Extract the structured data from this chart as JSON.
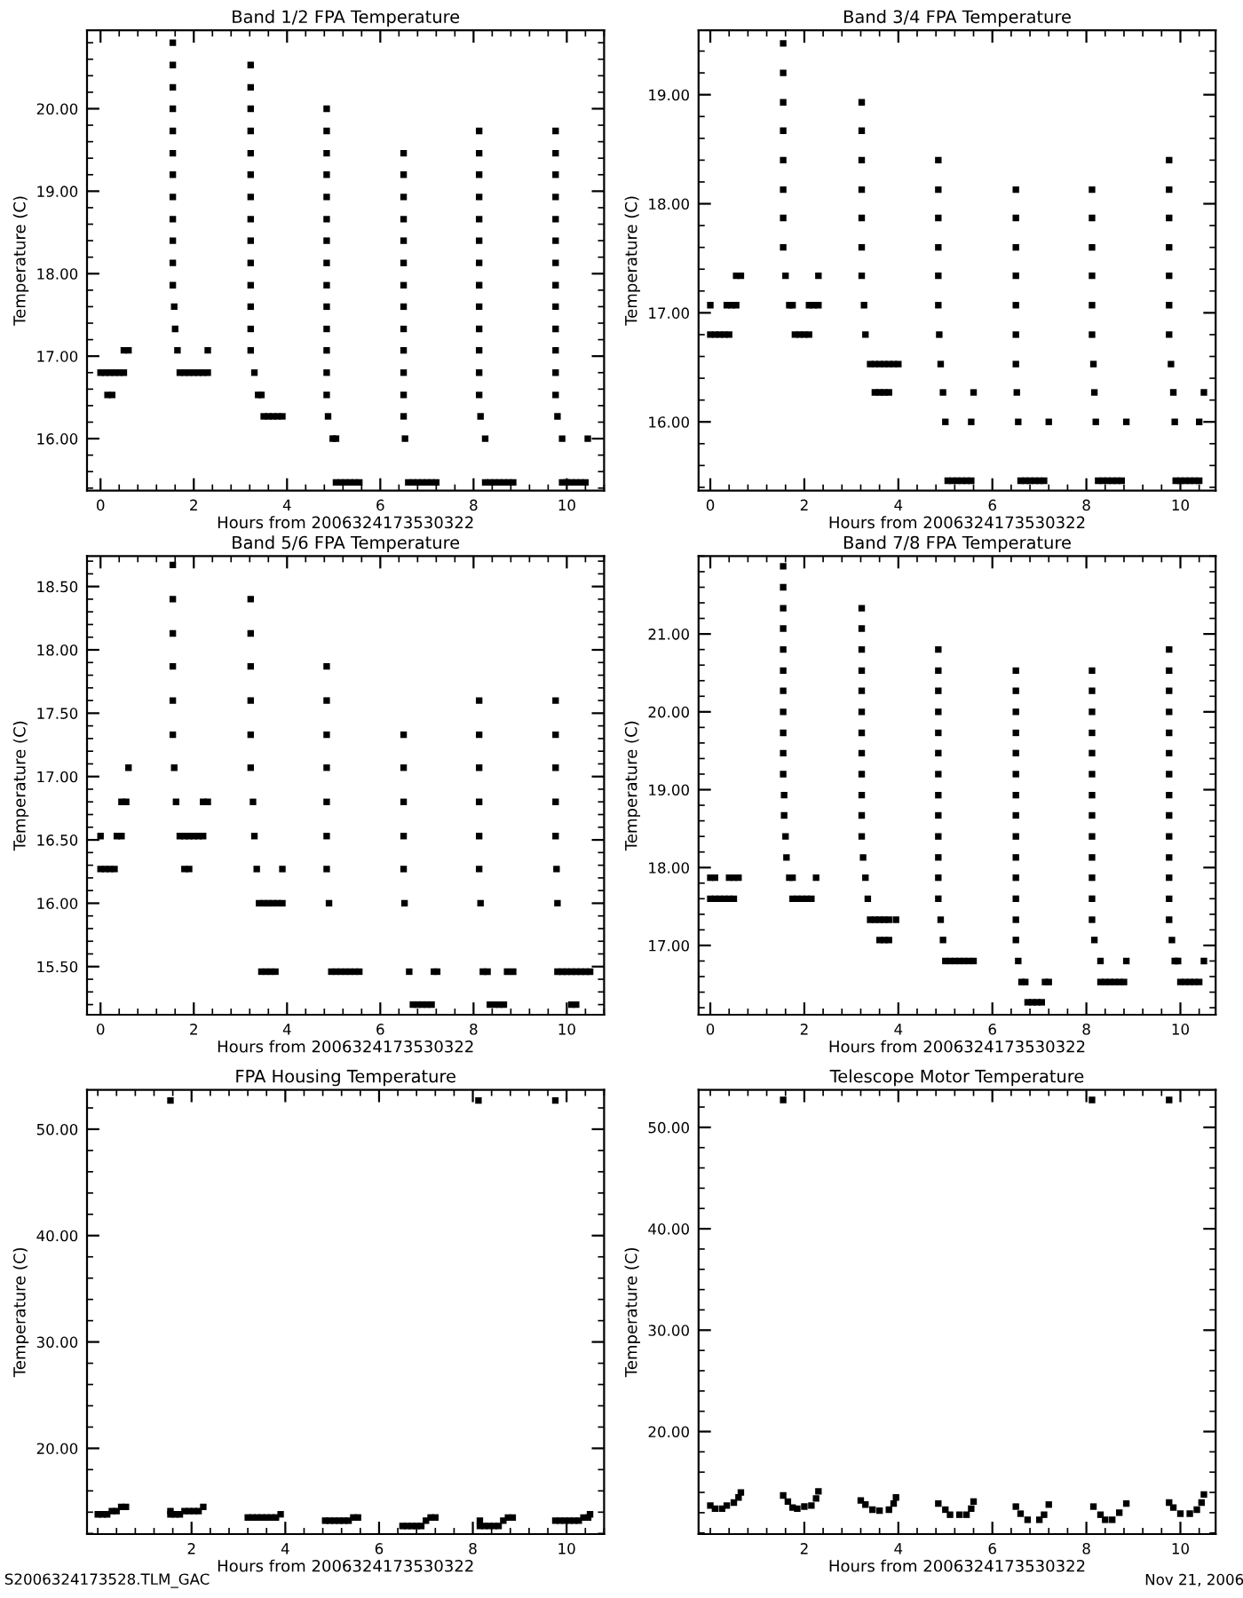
{
  "chart_data": [
    {
      "type": "scatter",
      "title": "Band 1/2 FPA Temperature",
      "xlabel": "Hours from 2006324173530322",
      "ylabel": "Temperature (C)",
      "marker": "square",
      "xlim": [
        -0.29,
        10.8
      ],
      "xticks": [
        0,
        2,
        4,
        6,
        8,
        10
      ],
      "ylim": [
        15.37,
        20.95
      ],
      "yticks": [
        {
          "value": 16,
          "label": "16.00"
        },
        {
          "value": 17,
          "label": "17.00"
        },
        {
          "value": 18,
          "label": "18.00"
        },
        {
          "value": 19,
          "label": "19.00"
        },
        {
          "value": 20,
          "label": "20.00"
        }
      ],
      "series": [
        {
          "color": "#000000",
          "x": [
            0,
            0.1,
            0.2,
            0.3,
            0.4,
            0.5,
            0.15,
            0.25,
            0.5,
            0.6
          ],
          "values": [
            16.8,
            16.8,
            16.8,
            16.8,
            16.8,
            16.8,
            16.53,
            16.53,
            17.07,
            17.07
          ]
        },
        {
          "color": "#000000",
          "x": [
            1.55,
            1.55,
            1.55,
            1.55,
            1.55,
            1.55,
            1.55,
            1.55,
            1.55,
            1.55,
            1.55,
            1.55,
            1.58,
            1.6,
            1.65
          ],
          "values": [
            20.8,
            20.53,
            20.26,
            20.0,
            19.73,
            19.46,
            19.2,
            18.93,
            18.66,
            18.4,
            18.13,
            17.86,
            17.6,
            17.33,
            17.07
          ]
        },
        {
          "color": "#000000",
          "x": [
            1.7,
            1.8,
            1.9,
            2.0,
            2.1,
            2.2,
            2.3,
            2.3
          ],
          "values": [
            16.8,
            16.8,
            16.8,
            16.8,
            16.8,
            16.8,
            16.8,
            17.07
          ]
        },
        {
          "color": "#000000",
          "x": [
            3.22,
            3.22,
            3.22,
            3.22,
            3.22,
            3.22,
            3.22,
            3.22,
            3.22,
            3.22,
            3.22,
            3.22,
            3.22,
            3.22,
            3.3,
            3.38,
            3.45,
            3.5,
            3.6,
            3.7,
            3.8,
            3.9
          ],
          "values": [
            20.53,
            20.26,
            20.0,
            19.73,
            19.46,
            19.2,
            18.93,
            18.66,
            18.4,
            18.13,
            17.86,
            17.6,
            17.33,
            17.07,
            16.8,
            16.53,
            16.53,
            16.27,
            16.27,
            16.27,
            16.27,
            16.27
          ]
        },
        {
          "color": "#000000",
          "x": [
            4.85,
            4.85,
            4.85,
            4.85,
            4.85,
            4.85,
            4.85,
            4.85,
            4.85,
            4.85,
            4.85,
            4.85,
            4.85,
            4.85,
            4.88,
            4.98,
            5.05,
            5.05,
            5.15,
            5.25,
            5.35,
            5.45,
            5.55
          ],
          "values": [
            20.0,
            19.73,
            19.46,
            19.2,
            18.93,
            18.66,
            18.4,
            18.13,
            17.86,
            17.6,
            17.33,
            17.07,
            16.8,
            16.53,
            16.27,
            16.0,
            16.0,
            15.47,
            15.47,
            15.47,
            15.47,
            15.47,
            15.47
          ]
        },
        {
          "color": "#000000",
          "x": [
            6.5,
            6.5,
            6.5,
            6.5,
            6.5,
            6.5,
            6.5,
            6.5,
            6.5,
            6.5,
            6.5,
            6.5,
            6.5,
            6.53,
            6.6,
            6.7,
            6.8,
            6.9,
            7.0,
            7.1,
            7.2
          ],
          "values": [
            19.46,
            19.2,
            18.93,
            18.66,
            18.4,
            18.13,
            17.86,
            17.6,
            17.33,
            17.07,
            16.8,
            16.53,
            16.27,
            16.0,
            15.47,
            15.47,
            15.47,
            15.47,
            15.47,
            15.47,
            15.47
          ]
        },
        {
          "color": "#000000",
          "x": [
            8.12,
            8.12,
            8.12,
            8.12,
            8.12,
            8.12,
            8.12,
            8.12,
            8.12,
            8.12,
            8.12,
            8.12,
            8.12,
            8.15,
            8.25,
            8.25,
            8.35,
            8.45,
            8.55,
            8.65,
            8.75,
            8.85
          ],
          "values": [
            19.73,
            19.46,
            19.2,
            18.93,
            18.66,
            18.4,
            18.13,
            17.86,
            17.6,
            17.33,
            17.07,
            16.8,
            16.53,
            16.27,
            16.0,
            15.47,
            15.47,
            15.47,
            15.47,
            15.47,
            15.47,
            15.47
          ]
        },
        {
          "color": "#000000",
          "x": [
            9.76,
            9.76,
            9.76,
            9.76,
            9.76,
            9.76,
            9.76,
            9.76,
            9.76,
            9.76,
            9.76,
            9.76,
            9.76,
            9.8,
            9.9,
            9.9,
            10.0,
            10.1,
            10.2,
            10.3,
            10.4,
            10.45
          ],
          "values": [
            19.73,
            19.46,
            19.2,
            18.93,
            18.66,
            18.4,
            18.13,
            17.86,
            17.6,
            17.33,
            17.07,
            16.8,
            16.53,
            16.27,
            16.0,
            15.47,
            15.47,
            15.47,
            15.47,
            15.47,
            15.47,
            16.0
          ]
        }
      ]
    },
    {
      "type": "scatter",
      "title": "Band 3/4 FPA Temperature",
      "xlabel": "Hours from 2006324173530322",
      "ylabel": "Temperature (C)",
      "marker": "square",
      "xlim": [
        -0.25,
        10.75
      ],
      "xticks": [
        0,
        2,
        4,
        6,
        8,
        10
      ],
      "ylim": [
        15.37,
        19.59
      ],
      "yticks": [
        {
          "value": 16,
          "label": "16.00"
        },
        {
          "value": 17,
          "label": "17.00"
        },
        {
          "value": 18,
          "label": "18.00"
        },
        {
          "value": 19,
          "label": "19.00"
        }
      ],
      "series": [
        {
          "color": "#000000",
          "x": [
            0,
            0,
            0.1,
            0.2,
            0.3,
            0.4,
            0.35,
            0.45,
            0.55,
            0.55,
            0.65
          ],
          "values": [
            17.07,
            16.8,
            16.8,
            16.8,
            16.8,
            16.8,
            17.07,
            17.07,
            17.07,
            17.34,
            17.34
          ]
        },
        {
          "color": "#000000",
          "x": [
            1.55,
            1.55,
            1.55,
            1.55,
            1.55,
            1.55,
            1.55,
            1.55,
            1.6,
            1.68,
            1.75
          ],
          "values": [
            19.47,
            19.2,
            18.93,
            18.67,
            18.4,
            18.13,
            17.87,
            17.6,
            17.34,
            17.07,
            17.07
          ]
        },
        {
          "color": "#000000",
          "x": [
            1.8,
            1.9,
            2.0,
            2.1,
            2.1,
            2.2,
            2.3,
            2.3
          ],
          "values": [
            16.8,
            16.8,
            16.8,
            16.8,
            17.07,
            17.07,
            17.07,
            17.34
          ]
        },
        {
          "color": "#000000",
          "x": [
            3.22,
            3.22,
            3.22,
            3.22,
            3.22,
            3.22,
            3.22,
            3.27,
            3.3,
            3.4,
            3.5,
            3.6,
            3.7,
            3.8,
            3.9,
            4.0,
            3.5,
            3.6,
            3.7,
            3.8
          ],
          "values": [
            18.93,
            18.67,
            18.4,
            18.13,
            17.87,
            17.6,
            17.34,
            17.07,
            16.8,
            16.53,
            16.53,
            16.53,
            16.53,
            16.53,
            16.53,
            16.53,
            16.27,
            16.27,
            16.27,
            16.27
          ]
        },
        {
          "color": "#000000",
          "x": [
            4.85,
            4.85,
            4.85,
            4.85,
            4.85,
            4.85,
            4.87,
            4.9,
            4.95,
            5.0,
            5.05,
            5.15,
            5.25,
            5.35,
            5.45,
            5.55,
            5.55,
            5.6
          ],
          "values": [
            18.4,
            18.13,
            17.87,
            17.6,
            17.34,
            17.07,
            16.8,
            16.53,
            16.27,
            16.0,
            15.46,
            15.46,
            15.46,
            15.46,
            15.46,
            15.46,
            16.0,
            16.27
          ]
        },
        {
          "color": "#000000",
          "x": [
            6.5,
            6.5,
            6.5,
            6.5,
            6.5,
            6.5,
            6.5,
            6.52,
            6.55,
            6.6,
            6.7,
            6.8,
            6.9,
            7.0,
            7.1,
            7.2
          ],
          "values": [
            18.13,
            17.87,
            17.6,
            17.34,
            17.07,
            16.8,
            16.53,
            16.27,
            16.0,
            15.46,
            15.46,
            15.46,
            15.46,
            15.46,
            15.46,
            16.0
          ]
        },
        {
          "color": "#000000",
          "x": [
            8.12,
            8.12,
            8.12,
            8.12,
            8.12,
            8.12,
            8.15,
            8.17,
            8.2,
            8.25,
            8.35,
            8.45,
            8.55,
            8.65,
            8.75,
            8.85
          ],
          "values": [
            18.13,
            17.87,
            17.6,
            17.34,
            17.07,
            16.8,
            16.53,
            16.27,
            16.0,
            15.46,
            15.46,
            15.46,
            15.46,
            15.46,
            15.46,
            16.0
          ]
        },
        {
          "color": "#000000",
          "x": [
            9.76,
            9.76,
            9.76,
            9.76,
            9.76,
            9.76,
            9.76,
            9.8,
            9.85,
            9.88,
            9.9,
            10.0,
            10.1,
            10.2,
            10.3,
            10.4,
            10.4,
            10.5
          ],
          "values": [
            18.4,
            18.13,
            17.87,
            17.6,
            17.34,
            17.07,
            16.8,
            16.53,
            16.27,
            16.0,
            15.46,
            15.46,
            15.46,
            15.46,
            15.46,
            15.46,
            16.0,
            16.27
          ]
        }
      ]
    },
    {
      "type": "scatter",
      "title": "Band 5/6 FPA Temperature",
      "xlabel": "Hours from 2006324173530322",
      "ylabel": "Temperature (C)",
      "marker": "square",
      "xlim": [
        -0.29,
        10.8
      ],
      "xticks": [
        0,
        2,
        4,
        6,
        8,
        10
      ],
      "ylim": [
        15.12,
        18.74
      ],
      "yticks": [
        {
          "value": 15.5,
          "label": "15.50"
        },
        {
          "value": 16,
          "label": "16.00"
        },
        {
          "value": 16.5,
          "label": "16.50"
        },
        {
          "value": 17,
          "label": "17.00"
        },
        {
          "value": 17.5,
          "label": "17.50"
        },
        {
          "value": 18,
          "label": "18.00"
        },
        {
          "value": 18.5,
          "label": "18.50"
        }
      ],
      "series": [
        {
          "color": "#000000",
          "x": [
            0,
            0,
            0.1,
            0.2,
            0.3,
            0.35,
            0.45,
            0.45,
            0.55,
            0.6
          ],
          "values": [
            16.53,
            16.27,
            16.27,
            16.27,
            16.27,
            16.53,
            16.53,
            16.8,
            16.8,
            17.07
          ]
        },
        {
          "color": "#000000",
          "x": [
            1.55,
            1.55,
            1.55,
            1.55,
            1.55,
            1.55,
            1.58,
            1.62
          ],
          "values": [
            18.67,
            18.4,
            18.13,
            17.87,
            17.6,
            17.33,
            17.07,
            16.8
          ]
        },
        {
          "color": "#000000",
          "x": [
            1.7,
            1.8,
            1.9,
            2.0,
            2.1,
            2.2,
            1.8,
            1.9,
            2.2,
            2.3
          ],
          "values": [
            16.53,
            16.53,
            16.53,
            16.53,
            16.53,
            16.53,
            16.27,
            16.27,
            16.8,
            16.8
          ]
        },
        {
          "color": "#000000",
          "x": [
            3.22,
            3.22,
            3.22,
            3.22,
            3.22,
            3.22,
            3.27,
            3.3,
            3.35,
            3.4,
            3.5,
            3.6,
            3.7,
            3.8,
            3.9,
            3.9,
            3.45,
            3.55,
            3.65,
            3.75
          ],
          "values": [
            18.4,
            18.13,
            17.87,
            17.6,
            17.33,
            17.07,
            16.8,
            16.53,
            16.27,
            16.0,
            16.0,
            16.0,
            16.0,
            16.0,
            16.0,
            16.27,
            15.46,
            15.46,
            15.46,
            15.46
          ]
        },
        {
          "color": "#000000",
          "x": [
            4.85,
            4.85,
            4.85,
            4.85,
            4.85,
            4.85,
            4.85,
            4.9,
            4.95,
            5.05,
            5.15,
            5.25,
            5.35,
            5.45,
            5.55
          ],
          "values": [
            17.87,
            17.6,
            17.33,
            17.07,
            16.8,
            16.53,
            16.27,
            16.0,
            15.46,
            15.46,
            15.46,
            15.46,
            15.46,
            15.46,
            15.46
          ]
        },
        {
          "color": "#000000",
          "x": [
            6.5,
            6.5,
            6.5,
            6.5,
            6.5,
            6.52,
            6.62,
            6.7,
            6.8,
            6.9,
            7.0,
            7.1,
            7.15,
            7.22
          ],
          "values": [
            17.33,
            17.07,
            16.8,
            16.53,
            16.27,
            16.0,
            15.46,
            15.2,
            15.2,
            15.2,
            15.2,
            15.2,
            15.46,
            15.46
          ]
        },
        {
          "color": "#000000",
          "x": [
            8.12,
            8.12,
            8.12,
            8.12,
            8.12,
            8.12,
            8.15,
            8.2,
            8.3,
            8.35,
            8.45,
            8.55,
            8.65,
            8.72,
            8.85
          ],
          "values": [
            17.6,
            17.33,
            17.07,
            16.8,
            16.53,
            16.27,
            16.0,
            15.46,
            15.46,
            15.2,
            15.2,
            15.2,
            15.2,
            15.46,
            15.46
          ]
        },
        {
          "color": "#000000",
          "x": [
            9.76,
            9.76,
            9.76,
            9.76,
            9.76,
            9.78,
            9.8,
            9.8,
            9.9,
            10.0,
            10.1,
            10.2,
            10.3,
            10.4,
            10.5,
            10.1,
            10.2
          ],
          "values": [
            17.6,
            17.33,
            17.07,
            16.8,
            16.53,
            16.27,
            16.0,
            15.46,
            15.46,
            15.46,
            15.46,
            15.46,
            15.46,
            15.46,
            15.46,
            15.2,
            15.2
          ]
        }
      ]
    },
    {
      "type": "scatter",
      "title": "Band 7/8 FPA Temperature",
      "xlabel": "Hours from 2006324173530322",
      "ylabel": "Temperature (C)",
      "marker": "square",
      "xlim": [
        -0.25,
        10.75
      ],
      "xticks": [
        0,
        2,
        4,
        6,
        8,
        10
      ],
      "ylim": [
        16.11,
        22.0
      ],
      "yticks": [
        {
          "value": 17,
          "label": "17.00"
        },
        {
          "value": 18,
          "label": "18.00"
        },
        {
          "value": 19,
          "label": "19.00"
        },
        {
          "value": 20,
          "label": "20.00"
        },
        {
          "value": 21,
          "label": "21.00"
        }
      ],
      "series": [
        {
          "color": "#000000",
          "x": [
            0,
            0.1,
            0,
            0.1,
            0.2,
            0.3,
            0.4,
            0.5,
            0.4,
            0.5,
            0.6
          ],
          "values": [
            17.87,
            17.87,
            17.6,
            17.6,
            17.6,
            17.6,
            17.6,
            17.6,
            17.87,
            17.87,
            17.87
          ]
        },
        {
          "color": "#000000",
          "x": [
            1.55,
            1.55,
            1.55,
            1.55,
            1.55,
            1.55,
            1.55,
            1.55,
            1.55,
            1.55,
            1.55,
            1.57,
            1.57,
            1.6,
            1.62,
            1.68,
            1.75
          ],
          "values": [
            21.87,
            21.6,
            21.33,
            21.07,
            20.8,
            20.53,
            20.27,
            20.0,
            19.73,
            19.47,
            19.2,
            18.93,
            18.67,
            18.4,
            18.13,
            17.87,
            17.87
          ]
        },
        {
          "color": "#000000",
          "x": [
            1.75,
            1.85,
            1.95,
            2.05,
            2.15,
            2.25
          ],
          "values": [
            17.6,
            17.6,
            17.6,
            17.6,
            17.6,
            17.87
          ]
        },
        {
          "color": "#000000",
          "x": [
            3.22,
            3.22,
            3.22,
            3.22,
            3.22,
            3.22,
            3.22,
            3.22,
            3.22,
            3.22,
            3.22,
            3.22,
            3.25,
            3.3,
            3.35,
            3.4,
            3.5,
            3.6,
            3.7,
            3.8,
            3.95,
            3.6,
            3.7,
            3.8
          ],
          "values": [
            21.33,
            21.07,
            20.8,
            20.53,
            20.27,
            20.0,
            19.73,
            19.47,
            19.2,
            18.93,
            18.67,
            18.4,
            18.13,
            17.87,
            17.6,
            17.33,
            17.33,
            17.33,
            17.33,
            17.33,
            17.33,
            17.07,
            17.07,
            17.07
          ]
        },
        {
          "color": "#000000",
          "x": [
            4.85,
            4.85,
            4.85,
            4.85,
            4.85,
            4.85,
            4.85,
            4.85,
            4.85,
            4.85,
            4.85,
            4.85,
            4.85,
            4.9,
            4.95,
            5.0,
            5.1,
            5.2,
            5.3,
            5.4,
            5.5,
            5.6
          ],
          "values": [
            20.8,
            20.53,
            20.27,
            20.0,
            19.73,
            19.47,
            19.2,
            18.93,
            18.67,
            18.4,
            18.13,
            17.87,
            17.6,
            17.33,
            17.07,
            16.8,
            16.8,
            16.8,
            16.8,
            16.8,
            16.8,
            16.8
          ]
        },
        {
          "color": "#000000",
          "x": [
            6.5,
            6.5,
            6.5,
            6.5,
            6.5,
            6.5,
            6.5,
            6.5,
            6.5,
            6.5,
            6.5,
            6.5,
            6.5,
            6.5,
            6.55,
            6.62,
            6.7,
            6.75,
            6.85,
            6.95,
            7.05,
            7.12,
            7.2
          ],
          "values": [
            20.53,
            20.27,
            20.0,
            19.73,
            19.47,
            19.2,
            18.93,
            18.67,
            18.4,
            18.13,
            17.87,
            17.6,
            17.33,
            17.07,
            16.8,
            16.53,
            16.53,
            16.27,
            16.27,
            16.27,
            16.27,
            16.53,
            16.53
          ]
        },
        {
          "color": "#000000",
          "x": [
            8.12,
            8.12,
            8.12,
            8.12,
            8.12,
            8.12,
            8.12,
            8.12,
            8.12,
            8.12,
            8.12,
            8.12,
            8.12,
            8.17,
            8.3,
            8.3,
            8.4,
            8.5,
            8.6,
            8.7,
            8.8,
            8.85
          ],
          "values": [
            20.53,
            20.27,
            20.0,
            19.73,
            19.47,
            19.2,
            18.93,
            18.67,
            18.4,
            18.13,
            17.87,
            17.6,
            17.33,
            17.07,
            16.8,
            16.53,
            16.53,
            16.53,
            16.53,
            16.53,
            16.53,
            16.8
          ]
        },
        {
          "color": "#000000",
          "x": [
            9.76,
            9.76,
            9.76,
            9.76,
            9.76,
            9.76,
            9.76,
            9.76,
            9.76,
            9.76,
            9.76,
            9.76,
            9.76,
            9.76,
            9.82,
            9.88,
            9.95,
            10.0,
            10.1,
            10.2,
            10.3,
            10.4,
            10.5
          ],
          "values": [
            20.8,
            20.53,
            20.27,
            20.0,
            19.73,
            19.47,
            19.2,
            18.93,
            18.67,
            18.4,
            18.13,
            17.87,
            17.6,
            17.33,
            17.07,
            16.8,
            16.8,
            16.53,
            16.53,
            16.53,
            16.53,
            16.53,
            16.8
          ]
        }
      ]
    },
    {
      "type": "scatter",
      "title": "FPA Housing Temperature",
      "xlabel": "Hours from 2006324173530322",
      "ylabel": "Temperature (C)",
      "marker": "square",
      "xlim": [
        -0.23,
        10.8
      ],
      "xticks": [
        2,
        4,
        6,
        8,
        10
      ],
      "ylim": [
        11.94,
        53.7
      ],
      "yticks": [
        {
          "value": 20,
          "label": "20.00"
        },
        {
          "value": 30,
          "label": "30.00"
        },
        {
          "value": 40,
          "label": "40.00"
        },
        {
          "value": 50,
          "label": "50.00"
        }
      ],
      "annotations": [
        "S2006324173528.TLM_GAC"
      ],
      "series": [
        {
          "color": "#000000",
          "x": [
            0,
            0.1,
            0.2,
            0.3,
            0.4,
            0.5,
            0.6
          ],
          "values": [
            13.8,
            13.8,
            13.8,
            14.1,
            14.1,
            14.5,
            14.5
          ]
        },
        {
          "color": "#000000",
          "x": [
            1.55,
            1.55,
            1.65,
            1.75,
            1.85,
            1.95,
            2.05,
            2.15,
            2.25
          ],
          "values": [
            14.1,
            13.8,
            13.8,
            13.8,
            14.1,
            14.1,
            14.1,
            14.1,
            14.5
          ]
        },
        {
          "color": "#000000",
          "x": [
            3.2,
            3.3,
            3.4,
            3.5,
            3.6,
            3.7,
            3.8,
            3.9
          ],
          "values": [
            13.5,
            13.5,
            13.5,
            13.5,
            13.5,
            13.5,
            13.5,
            13.8
          ]
        },
        {
          "color": "#000000",
          "x": [
            4.85,
            4.95,
            5.05,
            5.15,
            5.25,
            5.35,
            5.45,
            5.55
          ],
          "values": [
            13.2,
            13.2,
            13.2,
            13.2,
            13.2,
            13.2,
            13.5,
            13.5
          ]
        },
        {
          "color": "#000000",
          "x": [
            6.5,
            6.6,
            6.7,
            6.8,
            6.9,
            7.0,
            7.1,
            7.2
          ],
          "values": [
            12.7,
            12.7,
            12.7,
            12.7,
            12.7,
            13.2,
            13.5,
            13.5
          ]
        },
        {
          "color": "#000000",
          "x": [
            8.15,
            8.15,
            8.25,
            8.35,
            8.45,
            8.55,
            8.65,
            8.75,
            8.85
          ],
          "values": [
            13.2,
            12.7,
            12.7,
            12.7,
            12.7,
            12.7,
            13.2,
            13.5,
            13.5
          ]
        },
        {
          "color": "#000000",
          "x": [
            9.76,
            9.86,
            9.96,
            10.06,
            10.16,
            10.26,
            10.36,
            10.46,
            10.5
          ],
          "values": [
            13.2,
            13.2,
            13.2,
            13.2,
            13.2,
            13.2,
            13.5,
            13.5,
            13.8
          ]
        },
        {
          "color": "#000000",
          "x": [
            1.55,
            8.12,
            9.76
          ],
          "values": [
            52.7,
            52.7,
            52.7
          ]
        }
      ]
    },
    {
      "type": "scatter",
      "title": "Telescope Motor Temperature",
      "xlabel": "Hours from 2006324173530322",
      "ylabel": "Temperature (C)",
      "marker": "square",
      "xlim": [
        -0.25,
        10.75
      ],
      "xticks": [
        2,
        4,
        6,
        8,
        10
      ],
      "ylim": [
        9.89,
        53.7
      ],
      "yticks": [
        {
          "value": 20,
          "label": "20.00"
        },
        {
          "value": 30,
          "label": "30.00"
        },
        {
          "value": 40,
          "label": "40.00"
        },
        {
          "value": 50,
          "label": "50.00"
        }
      ],
      "annotations": [
        "Nov 21, 2006"
      ],
      "series": [
        {
          "color": "#000000",
          "x": [
            0.0,
            0.1,
            0.25,
            0.35,
            0.5,
            0.6,
            0.65
          ],
          "values": [
            12.7,
            12.4,
            12.4,
            12.7,
            13.0,
            13.5,
            14.0
          ]
        },
        {
          "color": "#000000",
          "x": [
            1.55,
            1.65,
            1.75,
            1.85,
            2.0,
            2.15,
            2.25,
            2.3
          ],
          "values": [
            13.7,
            13.1,
            12.5,
            12.4,
            12.6,
            12.7,
            13.4,
            14.1
          ]
        },
        {
          "color": "#000000",
          "x": [
            3.2,
            3.3,
            3.45,
            3.6,
            3.8,
            3.9,
            3.95
          ],
          "values": [
            13.2,
            12.8,
            12.3,
            12.2,
            12.3,
            12.9,
            13.5
          ]
        },
        {
          "color": "#000000",
          "x": [
            4.85,
            5.0,
            5.1,
            5.3,
            5.45,
            5.55,
            5.6
          ],
          "values": [
            12.9,
            12.3,
            11.8,
            11.8,
            11.8,
            12.4,
            13.1
          ]
        },
        {
          "color": "#000000",
          "x": [
            6.5,
            6.6,
            6.75,
            7.0,
            7.1,
            7.2
          ],
          "values": [
            12.6,
            11.9,
            11.3,
            11.3,
            11.8,
            12.8
          ]
        },
        {
          "color": "#000000",
          "x": [
            8.15,
            8.3,
            8.4,
            8.55,
            8.7,
            8.85
          ],
          "values": [
            12.6,
            11.8,
            11.3,
            11.3,
            12.0,
            12.9
          ]
        },
        {
          "color": "#000000",
          "x": [
            9.76,
            9.85,
            10.0,
            10.2,
            10.35,
            10.45,
            10.5
          ],
          "values": [
            13.0,
            12.5,
            11.9,
            11.9,
            12.3,
            13.0,
            13.8
          ]
        },
        {
          "color": "#000000",
          "x": [
            1.55,
            8.12,
            9.76
          ],
          "values": [
            52.7,
            52.7,
            52.7
          ]
        }
      ]
    }
  ]
}
